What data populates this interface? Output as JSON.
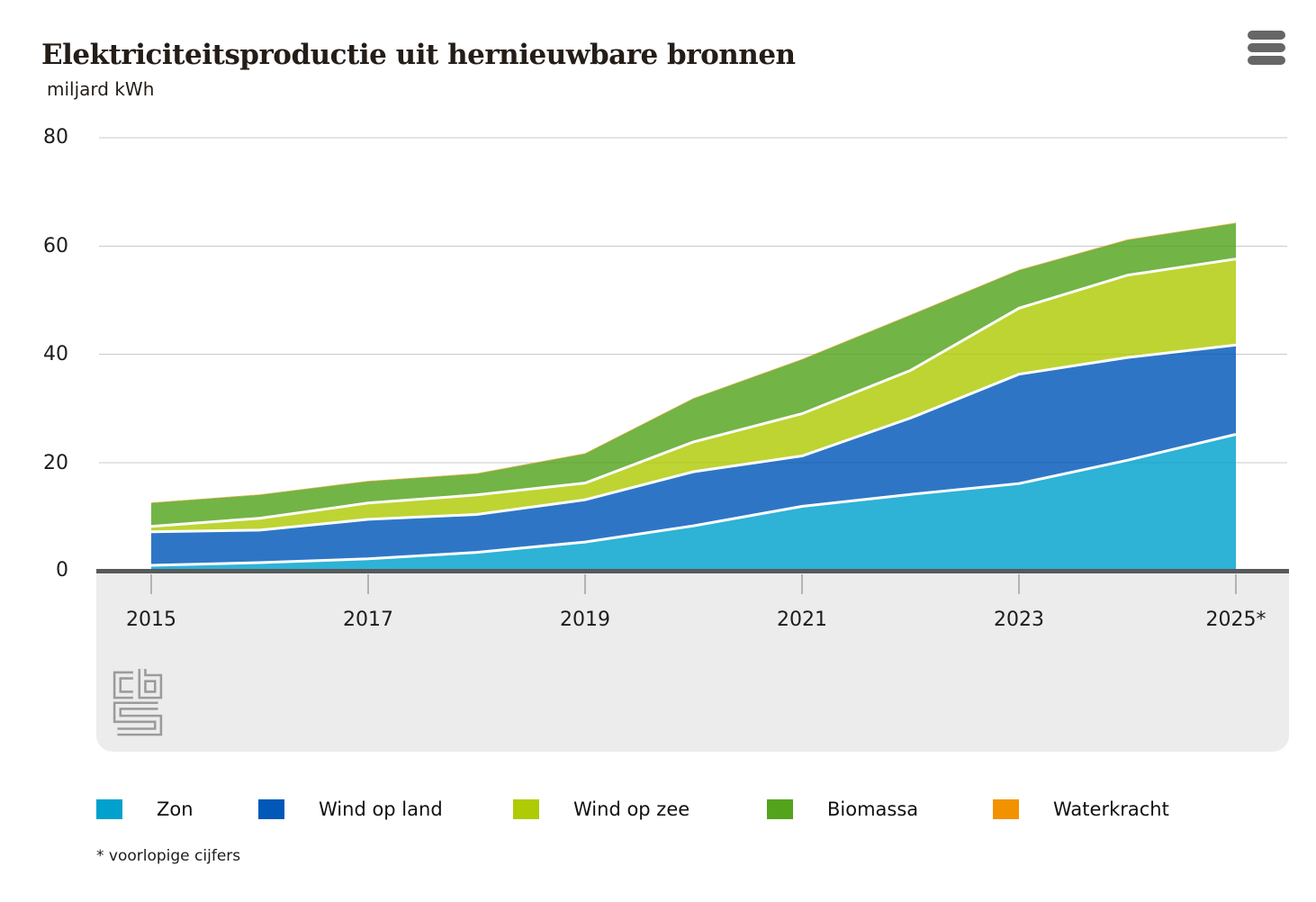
{
  "header": {
    "title": "Elektriciteitsproductie uit hernieuwbare bronnen",
    "unit_label": "miljard kWh"
  },
  "icons": {
    "menu": "hamburger-icon",
    "logo": "cbs-logo"
  },
  "chart_data": {
    "type": "area",
    "stacked": true,
    "title": "Elektriciteitsproductie uit hernieuwbare bronnen",
    "ylabel": "miljard kWh",
    "xlabel": "",
    "ylim": [
      0,
      80
    ],
    "grid": true,
    "legend_position": "bottom",
    "years": [
      2015,
      2016,
      2017,
      2018,
      2019,
      2020,
      2021,
      2022,
      2023,
      2024,
      2025
    ],
    "x_tick_labels": [
      "2015",
      "2017",
      "2019",
      "2021",
      "2023",
      "2025*"
    ],
    "y_tick_labels": [
      "0",
      "20",
      "40",
      "60",
      "80"
    ],
    "y_ticks": [
      0,
      20,
      40,
      60,
      80
    ],
    "series": [
      {
        "name": "Zon",
        "color": "#00a1cd",
        "values": [
          1.0,
          1.5,
          2.2,
          3.4,
          5.3,
          8.3,
          11.9,
          14.1,
          16.1,
          20.4,
          25.2
        ]
      },
      {
        "name": "Wind op land",
        "color": "#0058b8",
        "values": [
          6.2,
          6.0,
          7.3,
          7.0,
          7.8,
          10.0,
          9.3,
          14.1,
          20.2,
          19.0,
          16.5
        ]
      },
      {
        "name": "Wind op zee",
        "color": "#afcb05",
        "values": [
          1.0,
          2.2,
          3.0,
          3.6,
          3.1,
          5.5,
          7.8,
          8.8,
          12.2,
          15.2,
          15.9
        ]
      },
      {
        "name": "Biomassa",
        "color": "#53a31d",
        "values": [
          4.3,
          4.3,
          4.0,
          3.9,
          5.4,
          8.0,
          10.0,
          10.2,
          7.0,
          6.5,
          6.6
        ]
      },
      {
        "name": "Waterkracht",
        "color": "#f39200",
        "values": [
          0.1,
          0.1,
          0.1,
          0.1,
          0.1,
          0.1,
          0.1,
          0.1,
          0.1,
          0.1,
          0.1
        ]
      }
    ],
    "footnote": "* voorlopige cijfers",
    "colors": {
      "axis": "#58595b",
      "gridline": "#c9c9c9",
      "xband_background": "#ececec",
      "separator": "#ffffff"
    }
  }
}
